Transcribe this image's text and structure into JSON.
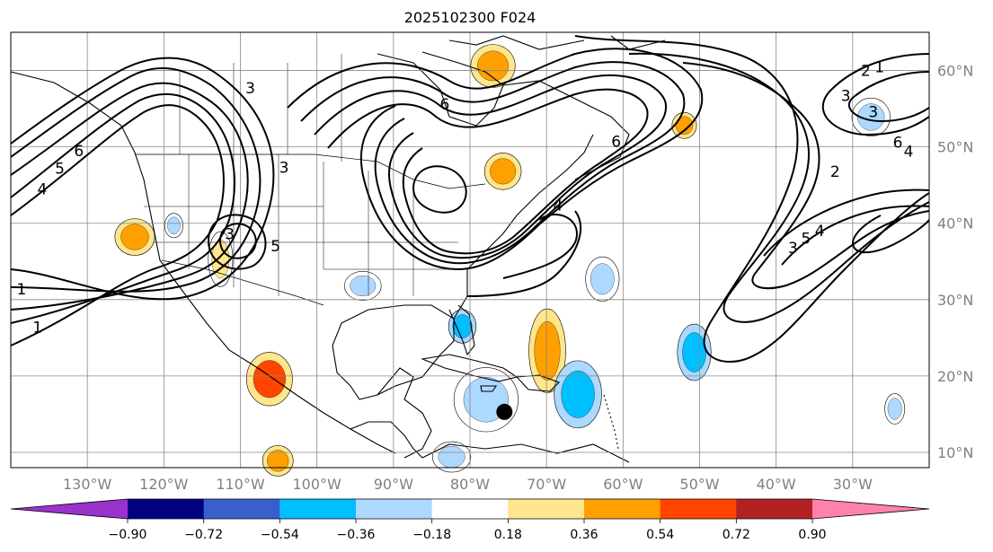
{
  "title": "2025102300 F024",
  "map": {
    "lon_range": [
      -140,
      -20
    ],
    "lat_range": [
      8,
      65
    ],
    "longitude_labels": [
      "130°W",
      "120°W",
      "110°W",
      "100°W",
      "90°W",
      "80°W",
      "70°W",
      "60°W",
      "50°W",
      "40°W",
      "30°W"
    ],
    "latitude_labels": [
      "60°N",
      "50°N",
      "40°N",
      "30°N",
      "20°N",
      "10°N"
    ],
    "label_color": "#808080",
    "gridlines": true,
    "marker": {
      "label": "storm center",
      "lon": -75.5,
      "lat": 15.3
    },
    "contour_labels": [
      {
        "text": "1",
        "lon": -138.6,
        "lat": 31.4
      },
      {
        "text": "1",
        "lon": -136.5,
        "lat": 26.4
      },
      {
        "text": "1",
        "lon": -26.5,
        "lat": 60.5
      },
      {
        "text": "2",
        "lon": -28.3,
        "lat": 60.0
      },
      {
        "text": "2",
        "lon": -32.3,
        "lat": 46.8
      },
      {
        "text": "3",
        "lon": -30.9,
        "lat": 56.7
      },
      {
        "text": "3",
        "lon": -37.8,
        "lat": 36.8
      },
      {
        "text": "3",
        "lon": -111.4,
        "lat": 38.6
      },
      {
        "text": "3",
        "lon": -108.7,
        "lat": 57.7
      },
      {
        "text": "3",
        "lon": -104.3,
        "lat": 47.3
      },
      {
        "text": "3",
        "lon": -27.3,
        "lat": 54.6
      },
      {
        "text": "4",
        "lon": -135.9,
        "lat": 44.5
      },
      {
        "text": "4",
        "lon": -34.3,
        "lat": 39.0
      },
      {
        "text": "4",
        "lon": -68.5,
        "lat": 42.4
      },
      {
        "text": "5",
        "lon": -133.6,
        "lat": 47.2
      },
      {
        "text": "5",
        "lon": -36.1,
        "lat": 38.0
      },
      {
        "text": "5",
        "lon": -105.4,
        "lat": 37.0
      },
      {
        "text": "6",
        "lon": -131.1,
        "lat": 49.5
      },
      {
        "text": "6",
        "lon": -24.1,
        "lat": 50.6
      },
      {
        "text": "6",
        "lon": -60.9,
        "lat": 50.7
      },
      {
        "text": "6",
        "lon": -83.3,
        "lat": 55.6
      },
      {
        "text": "4",
        "lon": -22.7,
        "lat": 49.4
      }
    ]
  },
  "colorbar": {
    "ticks": [
      "−0.90",
      "−0.72",
      "−0.54",
      "−0.36",
      "−0.18",
      "0.18",
      "0.36",
      "0.54",
      "0.72",
      "0.90"
    ],
    "bins": [
      {
        "range": "< -0.90",
        "color": "#9933cc"
      },
      {
        "range": "-0.90 – -0.72",
        "color": "#000080"
      },
      {
        "range": "-0.72 – -0.54",
        "color": "#3a5fcd"
      },
      {
        "range": "-0.54 – -0.36",
        "color": "#00bfff"
      },
      {
        "range": "-0.36 – -0.18",
        "color": "#add8ff"
      },
      {
        "range": "-0.18 – 0.18",
        "color": "#ffffff"
      },
      {
        "range": "0.18 – 0.36",
        "color": "#ffe68c"
      },
      {
        "range": "0.36 – 0.54",
        "color": "#ffa000"
      },
      {
        "range": "0.54 – 0.72",
        "color": "#ff4500"
      },
      {
        "range": "0.72 – 0.90",
        "color": "#b22222"
      },
      {
        "range": "> 0.90",
        "color": "#ff82ab"
      }
    ]
  },
  "shaded_regions": [
    {
      "name": "sw-orange-blob",
      "lon": -123.8,
      "lat": 38.2,
      "rx": 2.6,
      "ry": 2.4,
      "value": 0.45
    },
    {
      "name": "sw-yellow-band",
      "lon": -112.6,
      "lat": 35.3,
      "rx": 1.6,
      "ry": 3.6,
      "value": 0.25
    },
    {
      "name": "baja-blue-blob",
      "lon": -118.7,
      "lat": 39.7,
      "rx": 1.2,
      "ry": 1.6,
      "value": -0.25
    },
    {
      "name": "mexico-orange-blob",
      "lon": -106.2,
      "lat": 19.6,
      "rx": 3.0,
      "ry": 3.5,
      "value": 0.55
    },
    {
      "name": "pacific-orange-south",
      "lon": -105.1,
      "lat": 8.9,
      "rx": 2.0,
      "ry": 2.0,
      "value": 0.45
    },
    {
      "name": "hudson-orange-blob",
      "lon": -77.0,
      "lat": 60.6,
      "rx": 2.9,
      "ry": 2.8,
      "value": 0.45
    },
    {
      "name": "labrador-orange-blob",
      "lon": -52.0,
      "lat": 52.8,
      "rx": 1.6,
      "ry": 1.7,
      "value": 0.5
    },
    {
      "name": "great-lakes-orange-blob",
      "lon": -75.7,
      "lat": 46.8,
      "rx": 2.4,
      "ry": 2.4,
      "value": 0.45
    },
    {
      "name": "carib-orange-band",
      "lon": -69.9,
      "lat": 23.3,
      "rx": 2.4,
      "ry": 5.5,
      "value": 0.45
    },
    {
      "name": "carib-blue-large",
      "lon": -65.9,
      "lat": 17.6,
      "rx": 3.1,
      "ry": 4.4,
      "value": -0.5
    },
    {
      "name": "atlantic-blue-elongated",
      "lon": -50.7,
      "lat": 23.1,
      "rx": 2.2,
      "ry": 3.7,
      "value": -0.4
    },
    {
      "name": "atlantic-blue-north",
      "lon": -62.7,
      "lat": 32.7,
      "rx": 2.2,
      "ry": 2.9,
      "value": -0.25
    },
    {
      "name": "florida-blue-blob",
      "lon": -81.0,
      "lat": 26.5,
      "rx": 1.8,
      "ry": 2.2,
      "value": -0.4
    },
    {
      "name": "gulf-blue-blob",
      "lon": -77.9,
      "lat": 16.9,
      "rx": 4.2,
      "ry": 4.2,
      "value": -0.3
    },
    {
      "name": "east-blue-blob",
      "lon": -24.5,
      "lat": 15.7,
      "rx": 1.3,
      "ry": 2.0,
      "value": -0.3
    },
    {
      "name": "north-atlantic-blue-blob",
      "lon": -27.6,
      "lat": 53.9,
      "rx": 2.5,
      "ry": 2.5,
      "value": -0.3
    },
    {
      "name": "texas-blue-blob",
      "lon": -94.0,
      "lat": 31.8,
      "rx": 2.4,
      "ry": 1.9,
      "value": -0.25
    },
    {
      "name": "central-america-blue-blob",
      "lon": -82.4,
      "lat": 9.4,
      "rx": 2.5,
      "ry": 2.0,
      "value": -0.25
    }
  ]
}
